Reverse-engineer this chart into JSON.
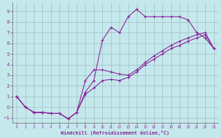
{
  "xlabel": "Windchill (Refroidissement éolien,°C)",
  "bg_color": "#c5e8ec",
  "grid_color": "#9bbfc4",
  "line_color": "#882299",
  "xlim_min": -0.5,
  "xlim_max": 23.5,
  "ylim_min": -1.5,
  "ylim_max": 9.8,
  "xticks": [
    0,
    1,
    2,
    3,
    4,
    5,
    6,
    7,
    8,
    9,
    10,
    11,
    12,
    13,
    14,
    15,
    16,
    17,
    18,
    19,
    20,
    21,
    22,
    23
  ],
  "yticks": [
    -1,
    0,
    1,
    2,
    3,
    4,
    5,
    6,
    7,
    8,
    9
  ],
  "line1_x": [
    0,
    1,
    2,
    3,
    4,
    5,
    6,
    7,
    8,
    9,
    10,
    11,
    12,
    13,
    14,
    15,
    16,
    17,
    18,
    19,
    20,
    21,
    22,
    23
  ],
  "line1_y": [
    1.0,
    0.0,
    -0.5,
    -0.5,
    -0.6,
    -0.6,
    -1.1,
    -0.5,
    1.4,
    2.5,
    6.3,
    7.5,
    7.0,
    8.5,
    9.2,
    8.5,
    8.5,
    8.5,
    8.5,
    8.5,
    8.2,
    7.0,
    6.5,
    5.5
  ],
  "line2_x": [
    0,
    1,
    2,
    3,
    4,
    5,
    6,
    7,
    8,
    9,
    10,
    11,
    12,
    13,
    14,
    15,
    16,
    17,
    18,
    19,
    20,
    21,
    22,
    23
  ],
  "line2_y": [
    1.0,
    0.0,
    -0.5,
    -0.5,
    -0.6,
    -0.6,
    -1.1,
    -0.5,
    2.5,
    3.5,
    3.5,
    3.3,
    3.1,
    3.0,
    3.5,
    4.2,
    4.8,
    5.3,
    5.8,
    6.2,
    6.5,
    6.8,
    7.0,
    5.5
  ],
  "line3_x": [
    0,
    1,
    2,
    3,
    4,
    5,
    6,
    7,
    8,
    9,
    10,
    11,
    12,
    13,
    14,
    15,
    16,
    17,
    18,
    19,
    20,
    21,
    22,
    23
  ],
  "line3_y": [
    1.0,
    0.0,
    -0.5,
    -0.5,
    -0.6,
    -0.6,
    -1.1,
    -0.5,
    1.2,
    1.8,
    2.5,
    2.6,
    2.5,
    2.8,
    3.3,
    4.0,
    4.5,
    5.0,
    5.5,
    5.8,
    6.2,
    6.5,
    6.8,
    5.5
  ]
}
